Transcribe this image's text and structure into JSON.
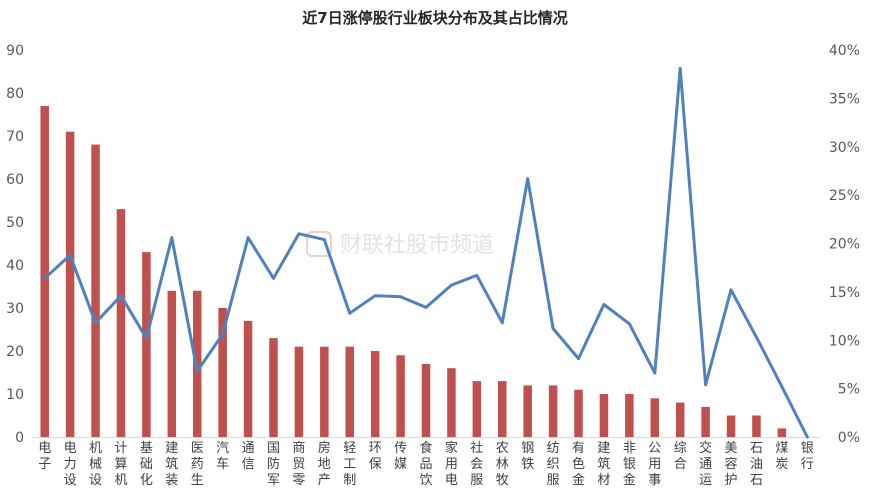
{
  "watermark": "财联社股市频道",
  "chart_data": {
    "type": "bar+line",
    "title": "近7日涨停股行业板块分布及其占比情况",
    "categories": [
      "电子",
      "电力设",
      "机械设",
      "计算机",
      "基础化",
      "建筑装",
      "医药生",
      "汽车",
      "通信",
      "国防军",
      "商贸零",
      "房地产",
      "轻工制",
      "环保",
      "传媒",
      "食品饮",
      "家用电",
      "社会服",
      "农林牧",
      "钢铁",
      "纺织服",
      "有色金",
      "建筑材",
      "非银金",
      "公用事",
      "综合",
      "交通运",
      "美容护",
      "石油石",
      "煤炭",
      "银行"
    ],
    "series": [
      {
        "type": "bar",
        "axis": "left",
        "color": "#c0504d",
        "values": [
          77,
          71,
          68,
          53,
          43,
          34,
          34,
          30,
          27,
          23,
          21,
          21,
          21,
          20,
          19,
          17,
          16,
          13,
          13,
          12,
          12,
          11,
          10,
          10,
          9,
          8,
          7,
          5,
          5,
          2,
          0
        ]
      },
      {
        "type": "line",
        "axis": "right",
        "color": "#4f81bd",
        "values": [
          16.4,
          18.8,
          11.8,
          14.6,
          10.2,
          20.6,
          6.8,
          10.6,
          20.6,
          16.4,
          21,
          20.4,
          12.8,
          14.6,
          14.5,
          13.4,
          15.7,
          16.7,
          11.8,
          26.7,
          11.2,
          8.1,
          13.7,
          11.7,
          6.6,
          38.1,
          5.4,
          15.2,
          10.3,
          5.2,
          0
        ]
      }
    ],
    "yleft": {
      "min": 0,
      "max": 90,
      "step": 10,
      "ticks": [
        "0",
        "10",
        "20",
        "30",
        "40",
        "50",
        "60",
        "70",
        "80",
        "90"
      ]
    },
    "yright": {
      "min": 0,
      "max": 40,
      "step": 5,
      "ticks": [
        "0%",
        "5%",
        "10%",
        "15%",
        "20%",
        "25%",
        "30%",
        "35%",
        "40%"
      ]
    },
    "grid": false,
    "legend": "none"
  }
}
